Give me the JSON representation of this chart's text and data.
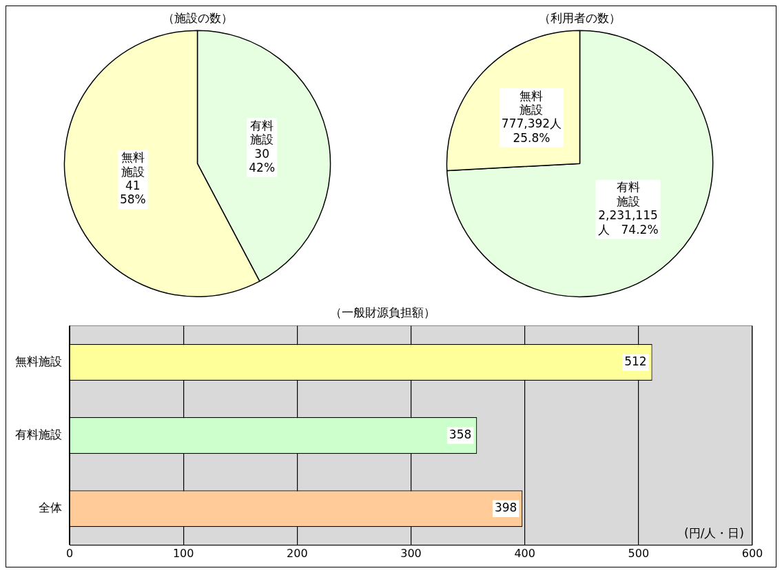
{
  "chart_data": [
    {
      "type": "pie",
      "title": "（施設の数）",
      "categories": [
        "有料施設",
        "無料施設"
      ],
      "values": [
        30,
        41
      ],
      "colors": [
        "#e6ffe0",
        "#ffffc8"
      ],
      "legend": false,
      "value_labels": [
        "30\n42%",
        "41\n58%"
      ]
    },
    {
      "type": "pie",
      "title": "（利用者の数）",
      "categories": [
        "有料施設",
        "無料施設"
      ],
      "values": [
        2231115,
        777392
      ],
      "colors": [
        "#e6ffe0",
        "#ffffc8"
      ],
      "legend": false,
      "value_labels": [
        "2,231,115\n人　74.2%",
        "777,392人\n25.8%"
      ]
    },
    {
      "type": "bar",
      "orientation": "horizontal",
      "title": "（一般財源負担額）",
      "categories": [
        "無料施設",
        "有料施設",
        "全体"
      ],
      "values": [
        512,
        358,
        398
      ],
      "colors": [
        "#ffff99",
        "#ccffcc",
        "#ffcc99"
      ],
      "xlim": [
        0,
        600
      ],
      "xticks": [
        0,
        100,
        200,
        300,
        400,
        500,
        600
      ],
      "grid": "x",
      "legend": false,
      "data_labels": true,
      "annotations": [
        "(円/人・日)"
      ]
    }
  ]
}
